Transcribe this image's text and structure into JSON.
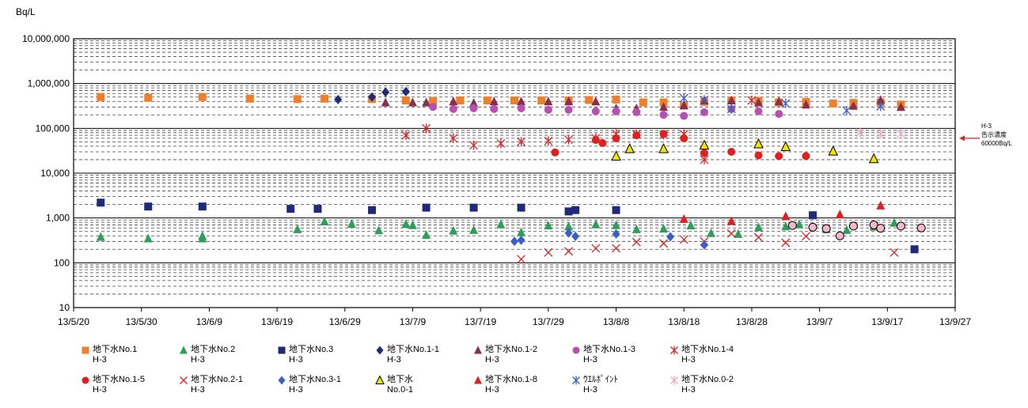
{
  "chart_data": {
    "type": "scatter",
    "yscale": "log",
    "ylabel": "Bq/L",
    "ylim": [
      10,
      10000000
    ],
    "xlim": [
      "2013-05-20",
      "2013-09-27"
    ],
    "y_ticks": [
      {
        "value": 10,
        "label": "10"
      },
      {
        "value": 100,
        "label": "100"
      },
      {
        "value": 1000,
        "label": "1,000"
      },
      {
        "value": 10000,
        "label": "10,000"
      },
      {
        "value": 100000,
        "label": "100,000"
      },
      {
        "value": 1000000,
        "label": "1,000,000"
      },
      {
        "value": 10000000,
        "label": "10,000,000"
      }
    ],
    "x_ticks": [
      {
        "date": "2013-05-20",
        "label": "13/5/20"
      },
      {
        "date": "2013-05-30",
        "label": "13/5/30"
      },
      {
        "date": "2013-06-09",
        "label": "13/6/9"
      },
      {
        "date": "2013-06-19",
        "label": "13/6/19"
      },
      {
        "date": "2013-06-29",
        "label": "13/6/29"
      },
      {
        "date": "2013-07-09",
        "label": "13/7/9"
      },
      {
        "date": "2013-07-19",
        "label": "13/7/19"
      },
      {
        "date": "2013-07-29",
        "label": "13/7/29"
      },
      {
        "date": "2013-08-08",
        "label": "13/8/8"
      },
      {
        "date": "2013-08-18",
        "label": "13/8/18"
      },
      {
        "date": "2013-08-28",
        "label": "13/8/28"
      },
      {
        "date": "2013-09-07",
        "label": "13/9/7"
      },
      {
        "date": "2013-09-17",
        "label": "13/9/17"
      },
      {
        "date": "2013-09-27",
        "label": "13/9/27"
      }
    ],
    "grid": true,
    "reference_line": {
      "value": 60000,
      "label_lines": [
        "H-3",
        "告示濃度",
        "60000Bq/L"
      ]
    },
    "series": [
      {
        "name": "地下水No.1",
        "unit": "H-3",
        "marker": "square",
        "color": "#F07F2A",
        "points": [
          [
            "2013-05-24",
            500000
          ],
          [
            "2013-05-31",
            480000
          ],
          [
            "2013-06-08",
            500000
          ],
          [
            "2013-06-15",
            460000
          ],
          [
            "2013-06-22",
            450000
          ],
          [
            "2013-06-26",
            460000
          ],
          [
            "2013-07-03",
            450000
          ],
          [
            "2013-07-08",
            420000
          ],
          [
            "2013-07-12",
            410000
          ],
          [
            "2013-07-16",
            420000
          ],
          [
            "2013-07-20",
            420000
          ],
          [
            "2013-07-24",
            420000
          ],
          [
            "2013-07-28",
            420000
          ],
          [
            "2013-08-01",
            420000
          ],
          [
            "2013-08-04",
            430000
          ],
          [
            "2013-08-08",
            440000
          ],
          [
            "2013-08-12",
            380000
          ],
          [
            "2013-08-15",
            380000
          ],
          [
            "2013-08-18",
            320000
          ],
          [
            "2013-08-21",
            390000
          ],
          [
            "2013-08-25",
            420000
          ],
          [
            "2013-08-29",
            410000
          ],
          [
            "2013-09-01",
            380000
          ],
          [
            "2013-09-05",
            390000
          ],
          [
            "2013-09-09",
            360000
          ],
          [
            "2013-09-12",
            370000
          ],
          [
            "2013-09-16",
            380000
          ],
          [
            "2013-09-19",
            340000
          ]
        ]
      },
      {
        "name": "地下水No.2",
        "unit": "H-3",
        "marker": "triangle",
        "color": "#2E9E5B",
        "points": [
          [
            "2013-05-24",
            380
          ],
          [
            "2013-05-31",
            350
          ],
          [
            "2013-06-08",
            350
          ],
          [
            "2013-06-08",
            400
          ],
          [
            "2013-06-22",
            560
          ],
          [
            "2013-06-26",
            840
          ],
          [
            "2013-06-30",
            740
          ],
          [
            "2013-07-04",
            530
          ],
          [
            "2013-07-08",
            730
          ],
          [
            "2013-07-09",
            690
          ],
          [
            "2013-07-11",
            420
          ],
          [
            "2013-07-15",
            520
          ],
          [
            "2013-07-18",
            540
          ],
          [
            "2013-07-22",
            720
          ],
          [
            "2013-07-25",
            480
          ],
          [
            "2013-07-29",
            680
          ],
          [
            "2013-08-01",
            650
          ],
          [
            "2013-08-05",
            720
          ],
          [
            "2013-08-08",
            690
          ],
          [
            "2013-08-11",
            560
          ],
          [
            "2013-08-15",
            580
          ],
          [
            "2013-08-19",
            680
          ],
          [
            "2013-08-22",
            460
          ],
          [
            "2013-08-26",
            440
          ],
          [
            "2013-08-29",
            620
          ],
          [
            "2013-09-02",
            650
          ],
          [
            "2013-09-04",
            720
          ],
          [
            "2013-09-08",
            560
          ],
          [
            "2013-09-11",
            540
          ],
          [
            "2013-09-15",
            640
          ],
          [
            "2013-09-18",
            780
          ]
        ]
      },
      {
        "name": "地下水No.3",
        "unit": "H-3",
        "marker": "square",
        "color": "#1F2A7A",
        "points": [
          [
            "2013-05-24",
            2200
          ],
          [
            "2013-05-31",
            1800
          ],
          [
            "2013-06-08",
            1800
          ],
          [
            "2013-06-21",
            1600
          ],
          [
            "2013-06-25",
            1600
          ],
          [
            "2013-07-03",
            1500
          ],
          [
            "2013-07-11",
            1700
          ],
          [
            "2013-07-18",
            1700
          ],
          [
            "2013-07-25",
            1700
          ],
          [
            "2013-08-01",
            1400
          ],
          [
            "2013-08-02",
            1500
          ],
          [
            "2013-08-08",
            1500
          ],
          [
            "2013-09-06",
            1150
          ],
          [
            "2013-09-21",
            200
          ]
        ]
      },
      {
        "name": "地下水No.1-1",
        "unit": "H-3",
        "marker": "diamond",
        "color": "#1F2A7A",
        "points": [
          [
            "2013-06-28",
            440000
          ],
          [
            "2013-07-03",
            500000
          ],
          [
            "2013-07-05",
            640000
          ],
          [
            "2013-07-08",
            660000
          ]
        ]
      },
      {
        "name": "地下水No.1-2",
        "unit": "H-3",
        "marker": "triangle",
        "color": "#8B2E4B",
        "points": [
          [
            "2013-07-05",
            380000
          ],
          [
            "2013-07-09",
            380000
          ],
          [
            "2013-07-11",
            380000
          ],
          [
            "2013-07-15",
            400000
          ],
          [
            "2013-07-18",
            370000
          ],
          [
            "2013-07-21",
            400000
          ],
          [
            "2013-07-25",
            400000
          ],
          [
            "2013-07-29",
            400000
          ],
          [
            "2013-08-01",
            400000
          ],
          [
            "2013-08-05",
            400000
          ],
          [
            "2013-08-08",
            280000
          ],
          [
            "2013-08-11",
            280000
          ],
          [
            "2013-08-15",
            300000
          ],
          [
            "2013-08-18",
            330000
          ],
          [
            "2013-08-21",
            420000
          ],
          [
            "2013-08-25",
            420000
          ],
          [
            "2013-08-29",
            380000
          ],
          [
            "2013-09-01",
            400000
          ],
          [
            "2013-09-05",
            340000
          ],
          [
            "2013-09-12",
            320000
          ],
          [
            "2013-09-16",
            430000
          ],
          [
            "2013-09-19",
            300000
          ]
        ]
      },
      {
        "name": "地下水No.1-3",
        "unit": "H-3",
        "marker": "circle",
        "color": "#B84FB2",
        "points": [
          [
            "2013-07-12",
            300000
          ],
          [
            "2013-07-15",
            270000
          ],
          [
            "2013-07-18",
            280000
          ],
          [
            "2013-07-21",
            270000
          ],
          [
            "2013-07-25",
            280000
          ],
          [
            "2013-07-29",
            260000
          ],
          [
            "2013-08-01",
            260000
          ],
          [
            "2013-08-05",
            240000
          ],
          [
            "2013-08-08",
            240000
          ],
          [
            "2013-08-11",
            230000
          ],
          [
            "2013-08-15",
            200000
          ],
          [
            "2013-08-18",
            190000
          ],
          [
            "2013-08-21",
            230000
          ],
          [
            "2013-08-25",
            270000
          ],
          [
            "2013-08-29",
            240000
          ],
          [
            "2013-09-01",
            210000
          ]
        ]
      },
      {
        "name": "地下水No.1-4",
        "unit": "H-3",
        "marker": "asterisk",
        "color": "#D6242B",
        "points": [
          [
            "2013-07-08",
            70000
          ],
          [
            "2013-07-11",
            100000
          ],
          [
            "2013-07-15",
            60000
          ],
          [
            "2013-07-18",
            42000
          ],
          [
            "2013-07-22",
            46000
          ],
          [
            "2013-07-25",
            50000
          ],
          [
            "2013-07-29",
            52000
          ],
          [
            "2013-08-01",
            56000
          ],
          [
            "2013-08-05",
            60000
          ],
          [
            "2013-08-08",
            75000
          ],
          [
            "2013-08-11",
            74000
          ],
          [
            "2013-08-15",
            72000
          ],
          [
            "2013-08-18",
            74000
          ],
          [
            "2013-08-21",
            20000
          ],
          [
            "2013-08-28",
            420000
          ]
        ]
      },
      {
        "name": "地下水No.1-5",
        "unit": "H-3",
        "marker": "circle",
        "color": "#E0201E",
        "points": [
          [
            "2013-07-30",
            29000
          ],
          [
            "2013-08-05",
            55000
          ],
          [
            "2013-08-06",
            47000
          ],
          [
            "2013-08-08",
            60000
          ],
          [
            "2013-08-11",
            70000
          ],
          [
            "2013-08-15",
            75000
          ],
          [
            "2013-08-18",
            60000
          ],
          [
            "2013-08-21",
            28000
          ],
          [
            "2013-08-25",
            30000
          ],
          [
            "2013-08-29",
            25000
          ],
          [
            "2013-09-01",
            24000
          ],
          [
            "2013-09-05",
            24000
          ]
        ]
      },
      {
        "name": "地下水No.2-1",
        "unit": "H-3",
        "marker": "x",
        "color": "#E0201E",
        "points": [
          [
            "2013-07-25",
            120
          ],
          [
            "2013-07-29",
            170
          ],
          [
            "2013-08-01",
            180
          ],
          [
            "2013-08-05",
            210
          ],
          [
            "2013-08-08",
            210
          ],
          [
            "2013-08-11",
            290
          ],
          [
            "2013-08-15",
            270
          ],
          [
            "2013-08-18",
            330
          ],
          [
            "2013-08-21",
            300
          ],
          [
            "2013-08-25",
            450
          ],
          [
            "2013-08-29",
            370
          ],
          [
            "2013-09-02",
            280
          ],
          [
            "2013-09-05",
            390
          ],
          [
            "2013-09-18",
            170
          ]
        ]
      },
      {
        "name": "地下水No.3-1",
        "unit": "H-3",
        "marker": "diamond",
        "color": "#3A5FC8",
        "points": [
          [
            "2013-07-24",
            300
          ],
          [
            "2013-07-25",
            320
          ],
          [
            "2013-08-01",
            460
          ],
          [
            "2013-08-02",
            390
          ],
          [
            "2013-08-08",
            440
          ],
          [
            "2013-08-16",
            380
          ],
          [
            "2013-08-21",
            250
          ]
        ]
      },
      {
        "name": "地下水",
        "name_line2": "No.0-1",
        "unit": "",
        "marker": "triangle-open",
        "color": "#F2E600",
        "points": [
          [
            "2013-08-08",
            24000
          ],
          [
            "2013-08-10",
            35000
          ],
          [
            "2013-08-15",
            35000
          ],
          [
            "2013-08-21",
            42000
          ],
          [
            "2013-08-29",
            45000
          ],
          [
            "2013-09-02",
            39000
          ],
          [
            "2013-09-09",
            31000
          ],
          [
            "2013-09-15",
            21000
          ]
        ]
      },
      {
        "name": "地下水No.1-8",
        "unit": "H-3",
        "marker": "triangle",
        "color": "#E0201E",
        "points": [
          [
            "2013-08-18",
            950
          ],
          [
            "2013-08-25",
            850
          ],
          [
            "2013-09-02",
            1100
          ],
          [
            "2013-09-10",
            1200
          ],
          [
            "2013-09-16",
            1900
          ]
        ]
      },
      {
        "name": "ｳｴﾙﾎﾟｲﾝﾄ",
        "unit": "H-3",
        "marker": "asterisk",
        "color": "#3A5FC8",
        "points": [
          [
            "2013-08-18",
            470000
          ],
          [
            "2013-08-21",
            430000
          ],
          [
            "2013-08-25",
            270000
          ],
          [
            "2013-09-02",
            360000
          ],
          [
            "2013-09-11",
            250000
          ],
          [
            "2013-09-16",
            310000
          ]
        ]
      },
      {
        "name": "地下水No.0-2",
        "unit": "H-3",
        "marker": "asterisk",
        "color": "#F2A6C6",
        "points": [
          [
            "2013-09-13",
            80000
          ],
          [
            "2013-09-16",
            75000
          ],
          [
            "2013-09-19",
            75000
          ]
        ]
      },
      {
        "name": "",
        "unit": "",
        "marker": "circle-open",
        "color": "#F4B8C8",
        "points": [
          [
            "2013-09-03",
            680
          ],
          [
            "2013-09-06",
            620
          ],
          [
            "2013-09-08",
            580
          ],
          [
            "2013-09-10",
            400
          ],
          [
            "2013-09-12",
            660
          ],
          [
            "2013-09-15",
            700
          ],
          [
            "2013-09-16",
            590
          ],
          [
            "2013-09-19",
            660
          ],
          [
            "2013-09-22",
            600
          ]
        ]
      }
    ]
  }
}
